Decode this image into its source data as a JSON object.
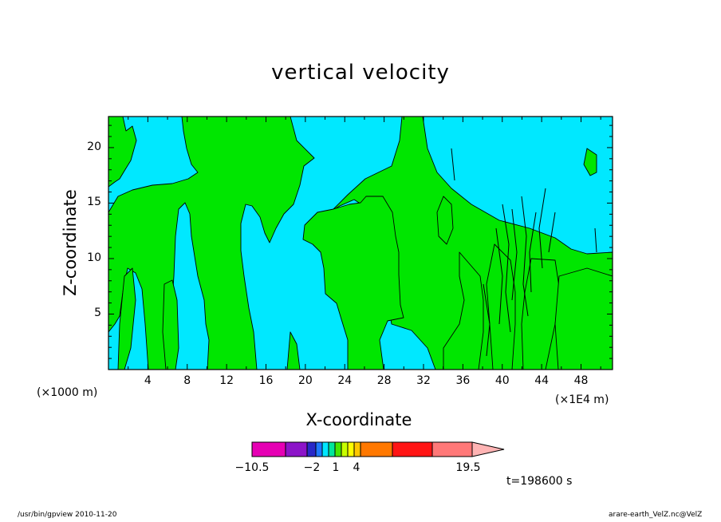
{
  "chart_data": {
    "type": "heatmap",
    "title": "vertical velocity",
    "xlabel": "X-coordinate",
    "ylabel": "Z-coordinate",
    "x_unit_left": "(×1000 m)",
    "x_unit_right": "(×1E4 m)",
    "x_ticks": [
      "4",
      "8",
      "12",
      "16",
      "20",
      "24",
      "28",
      "32",
      "36",
      "40",
      "44",
      "48"
    ],
    "x_tick_values": [
      4,
      8,
      12,
      16,
      20,
      24,
      28,
      32,
      36,
      40,
      44,
      48
    ],
    "xlim": [
      0,
      51.2
    ],
    "y_ticks": [
      "5",
      "10",
      "15",
      "20"
    ],
    "y_tick_values": [
      5,
      10,
      15,
      20
    ],
    "ylim": [
      0,
      22.8
    ],
    "colorbar": {
      "labels": [
        "−10.5",
        "−2",
        "1",
        "4",
        "19.5"
      ],
      "label_values": [
        -10.5,
        -2,
        1,
        4,
        19.5
      ],
      "colors": [
        "#e600b4",
        "#8c14c8",
        "#2828c8",
        "#1e78ff",
        "#00e6ff",
        "#00e69a",
        "#46e600",
        "#c8ff00",
        "#ffff00",
        "#ffc800",
        "#ff7800",
        "#ff1414",
        "#ff7878",
        "#ffb4b4"
      ]
    },
    "fields": {
      "background_color": "#00e8ff",
      "positive_color": "#00e600",
      "contour_color": "#000000"
    },
    "time_label": "t=198600 s"
  },
  "footer": {
    "left": "/usr/bin/gpview  2010-11-20",
    "right": "arare-earth_VelZ.nc@VelZ"
  }
}
